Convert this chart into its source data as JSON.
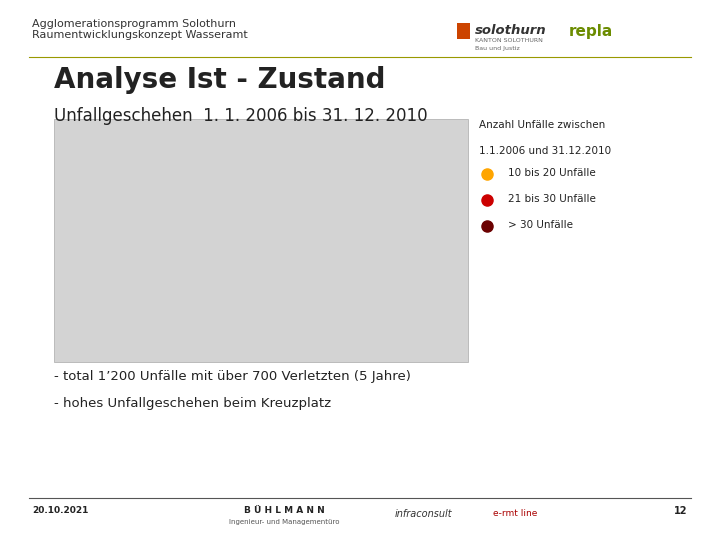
{
  "bg_color": "#ffffff",
  "header_line1": "Agglomerationsprogramm Solothurn",
  "header_line2": "Raumentwicklungskonzept Wasseramt",
  "header_fontsize": 8,
  "title": "Analyse Ist - Zustand",
  "title_fontsize": 20,
  "subtitle": "Unfallgeschehen  1. 1. 2006 bis 31. 12. 2010",
  "subtitle_fontsize": 12,
  "legend_title": "Anzahl Unfälle zwischen",
  "legend_line2": "1.1.2006 und 31.12.2010",
  "legend_items": [
    {
      "label": "10 bis 20 Unfälle",
      "color": "#FFA500"
    },
    {
      "label": "21 bis 30 Unfälle",
      "color": "#CC0000"
    },
    {
      "label": "> 30 Unfälle",
      "color": "#6B0000"
    }
  ],
  "bullet1": "- total 1’200 Unfälle mit über 700 Verletzten (5 Jahre)",
  "bullet2": "- hohes Unfallgeschehen beim Kreuzplatz",
  "footer_date": "20.10.2021",
  "footer_page": "12",
  "footer_buhlmann": "B Ü H L M A N N",
  "footer_buhlmann_sub": "Ingenieur- und Managementüro",
  "map_placeholder_color": "#d3d3d3",
  "separator_color": "#999900",
  "footer_sep_color": "#555555"
}
